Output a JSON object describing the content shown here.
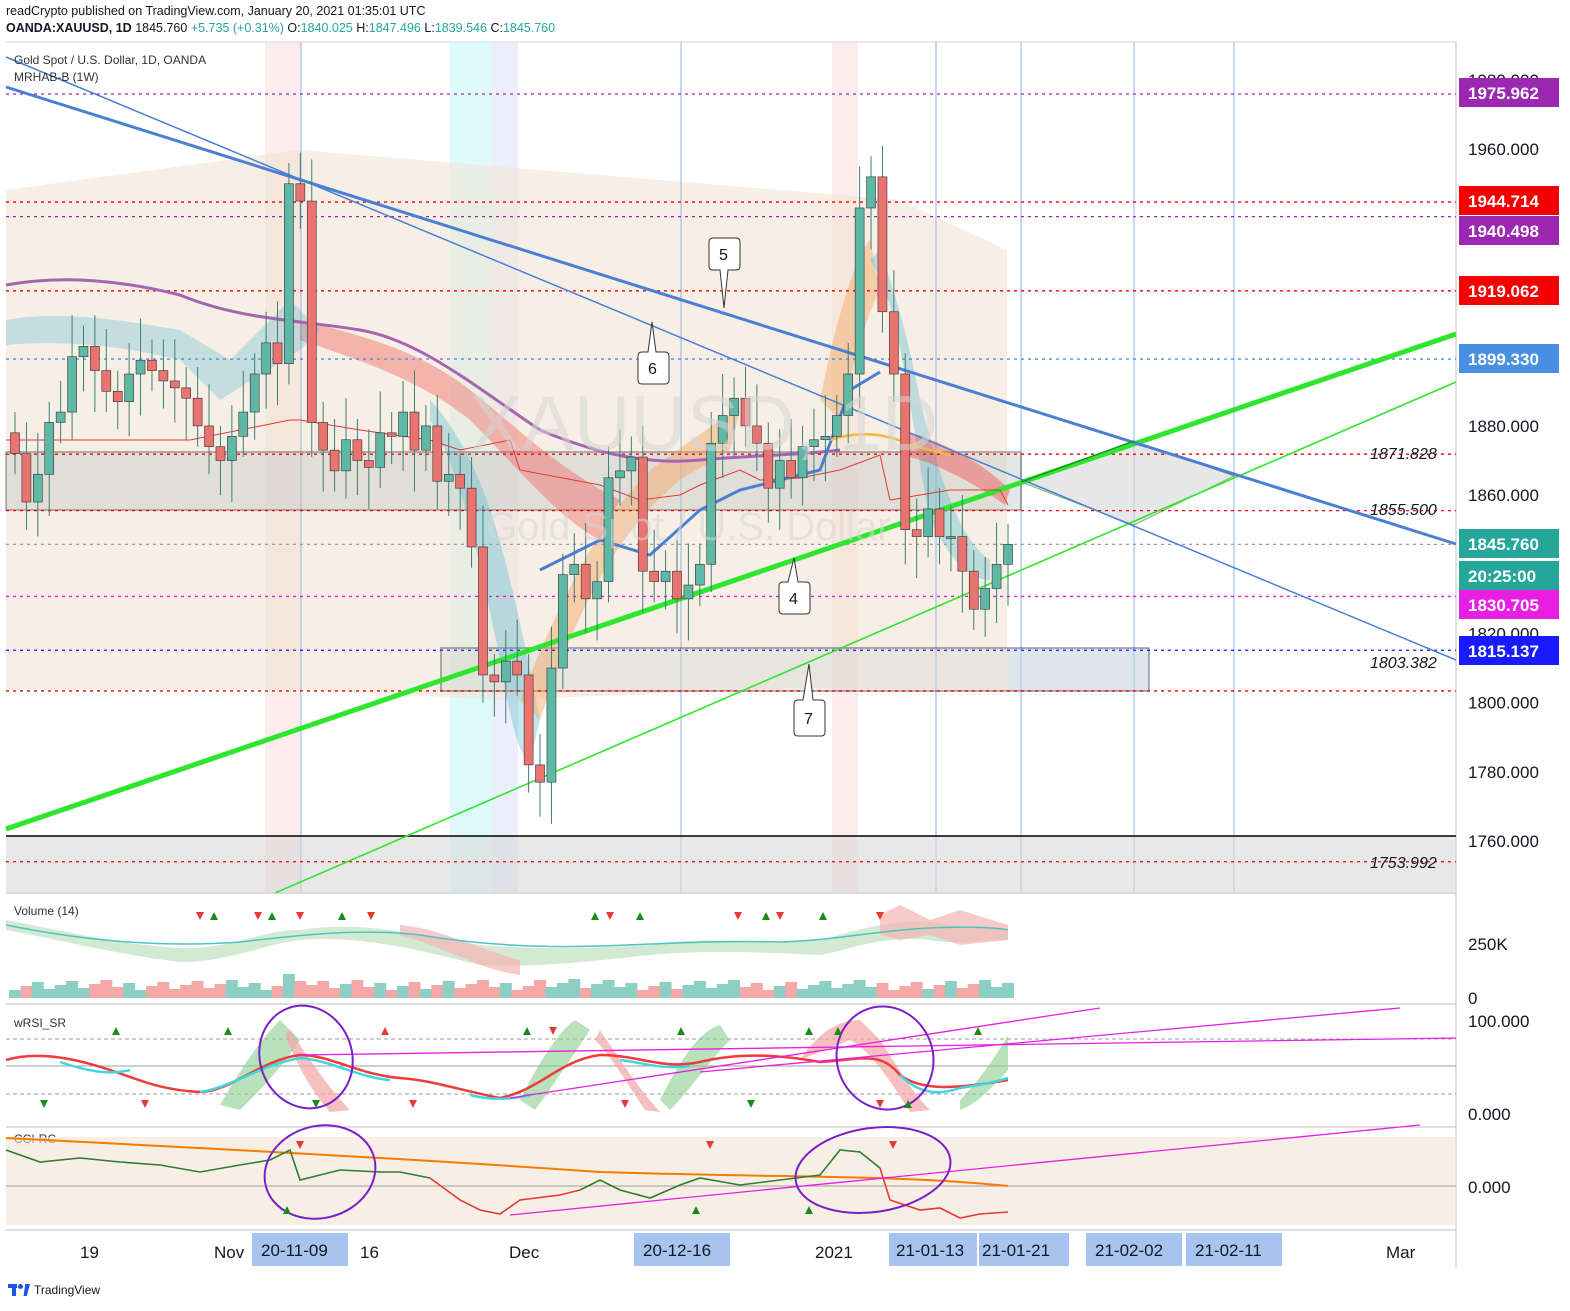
{
  "header": {
    "line1": "readCrypto published on TradingView.com, January 20, 2021 01:35:01 UTC",
    "symbol": "OANDA:XAUUSD, 1D",
    "last": "1845.760",
    "change": "+5.735 (+0.31%)",
    "open_label": "O:",
    "open": "1840.025",
    "high_label": "H:",
    "high": "1847.496",
    "low_label": "L:",
    "low": "1839.546",
    "close_label": "C:",
    "close": "1845.760"
  },
  "main_pane": {
    "title": "Gold Spot / U.S. Dollar, 1D, OANDA",
    "indicator": "MRHAB-B (1W)",
    "watermark_symbol": "XAUUSD, 1D",
    "watermark_name": "Gold Spot / U.S. Dollar"
  },
  "volume_pane": {
    "title": "Volume (14)",
    "axis": [
      "250K",
      "0"
    ]
  },
  "rsi_pane": {
    "title": "wRSI_SR",
    "axis": [
      "100.000",
      "0.000"
    ]
  },
  "cci_pane": {
    "title": "CCI-RC",
    "axis": [
      "0.000"
    ]
  },
  "price_axis": [
    "1980.000",
    "1960.000",
    "1880.000",
    "1860.000",
    "1820.000",
    "1800.000",
    "1780.000",
    "1760.000"
  ],
  "price_tags": [
    {
      "value": "1975.962",
      "color": "#9c27b0"
    },
    {
      "value": "1944.714",
      "color": "#f50000"
    },
    {
      "value": "1940.498",
      "color": "#9c27b0"
    },
    {
      "value": "1919.062",
      "color": "#f50000"
    },
    {
      "value": "1899.330",
      "color": "#4a90e2"
    },
    {
      "value": "1845.760",
      "color": "#26a69a"
    },
    {
      "value": "20:25:00",
      "color": "#26a69a"
    },
    {
      "value": "1830.705",
      "color": "#e91ee3"
    },
    {
      "value": "1815.137",
      "color": "#1a1aff"
    }
  ],
  "level_labels": [
    "1871.828",
    "1855.500",
    "1803.382",
    "1753.992"
  ],
  "callouts": [
    "5",
    "6",
    "4",
    "7"
  ],
  "time_axis": {
    "labels": [
      "19",
      "Nov",
      "16",
      "Dec",
      "2021",
      "Mar"
    ],
    "highlighted": [
      "20-11-09",
      "20-12-16",
      "21-01-13",
      "21-01-21",
      "21-02-02",
      "21-02-11"
    ]
  },
  "footer": {
    "brand": "TradingView"
  },
  "colors": {
    "up": "#26a69a",
    "down": "#ef5350",
    "trend_green": "#2ee62e",
    "trend_blue": "#4a7fd4",
    "grid_tag_bg": "#a7c3f0"
  },
  "chart_data": {
    "type": "candlestick",
    "symbol": "OANDA:XAUUSD",
    "interval": "1D",
    "ylim": [
      1745,
      1990
    ],
    "horizontal_levels": [
      1975.962,
      1944.714,
      1940.498,
      1919.062,
      1899.33,
      1871.828,
      1855.5,
      1845.76,
      1830.705,
      1815.137,
      1803.382,
      1753.992
    ],
    "ohlc_close_series": [
      1872,
      1858,
      1866,
      1881,
      1884,
      1900,
      1903,
      1896,
      1890,
      1887,
      1895,
      1899,
      1896,
      1893,
      1891,
      1888,
      1880,
      1874,
      1870,
      1877,
      1884,
      1895,
      1904,
      1898,
      1950,
      1945,
      1881,
      1873,
      1867,
      1876,
      1870,
      1868,
      1878,
      1877,
      1884,
      1873,
      1880,
      1864,
      1866,
      1862,
      1845,
      1808,
      1806,
      1812,
      1808,
      1782,
      1777,
      1810,
      1837,
      1840,
      1830,
      1835,
      1865,
      1867,
      1871,
      1838,
      1835,
      1838,
      1830,
      1834,
      1840,
      1875,
      1883,
      1888,
      1880,
      1875,
      1862,
      1870,
      1865,
      1874,
      1876,
      1877,
      1883,
      1895,
      1943,
      1952,
      1913,
      1895,
      1850,
      1848,
      1856,
      1848,
      1848,
      1838,
      1827,
      1833,
      1840,
      1845.76
    ]
  }
}
